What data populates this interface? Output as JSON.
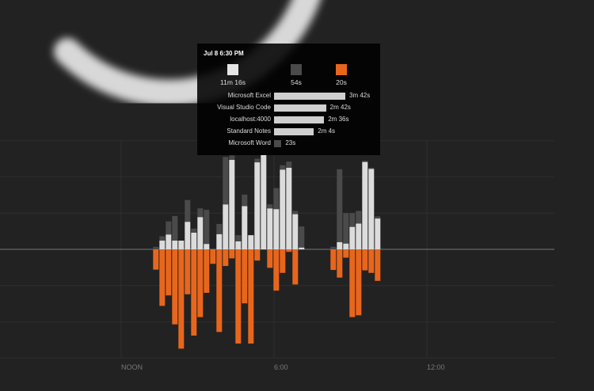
{
  "chart_data": {
    "type": "bar",
    "stacked": true,
    "diverging": true,
    "x_tick_labels": [
      "NOON",
      "6:00",
      "12:00"
    ],
    "grid": true,
    "colors": {
      "productive": "#dcdcdc",
      "neutral": "#4a4a4a",
      "distracting": "#e8661c"
    },
    "bucket_minutes": 15,
    "first_bucket": "1:00 PM",
    "series": [
      {
        "key": "productive",
        "values": [
          0,
          0.24,
          0.41,
          0.24,
          0.24,
          0.76,
          0.46,
          0.89,
          0.15,
          0,
          0.42,
          1.24,
          2.47,
          0.22,
          1.19,
          0.39,
          2.4,
          2.6,
          1.13,
          1.11,
          2.2,
          2.25,
          0.97,
          0.05,
          0,
          0,
          0,
          0,
          0,
          0.2,
          0.16,
          0.62,
          0.71,
          2.41,
          2.22,
          0.85
        ]
      },
      {
        "key": "neutral",
        "values": [
          0.07,
          0.12,
          0.36,
          0.68,
          0,
          0.6,
          0.11,
          0.24,
          0.94,
          0,
          0.28,
          1.31,
          0.12,
          0.17,
          0.32,
          0,
          0.1,
          0,
          0.11,
          0.58,
          0.12,
          0.17,
          0.09,
          0.58,
          0,
          0,
          0,
          0,
          0.07,
          2.01,
          0.84,
          0.38,
          0.35,
          0.03,
          0.03,
          0.06
        ]
      },
      {
        "key": "distracting",
        "values": [
          0.56,
          1.56,
          1.27,
          2.07,
          2.74,
          1.24,
          2.38,
          1.87,
          1.2,
          0.4,
          2.28,
          0.46,
          0.25,
          2.6,
          1.49,
          2.6,
          0.31,
          0,
          0.51,
          1.14,
          0.65,
          0.07,
          0.97,
          0,
          0,
          0,
          0,
          0,
          0.57,
          0.78,
          0.23,
          1.87,
          1.82,
          0.58,
          0.65,
          0.87
        ]
      }
    ]
  },
  "tooltip": {
    "title": "Jul 8 6:30 PM",
    "totals": [
      {
        "category": "productive",
        "value": "11m 16s",
        "color": "#e6e6e6"
      },
      {
        "category": "neutral",
        "value": "54s",
        "color": "#4a4a4a"
      },
      {
        "category": "distracting",
        "value": "20s",
        "color": "#e8661c"
      }
    ],
    "apps": [
      {
        "name": "Microsoft Excel",
        "value": "3m 42s",
        "seconds": 222,
        "color": "#cfcfcf"
      },
      {
        "name": "Visual Studio Code",
        "value": "2m 42s",
        "seconds": 162,
        "color": "#cfcfcf"
      },
      {
        "name": "localhost:4000",
        "value": "2m 36s",
        "seconds": 156,
        "color": "#cfcfcf"
      },
      {
        "name": "Standard Notes",
        "value": "2m 4s",
        "seconds": 124,
        "color": "#cfcfcf"
      },
      {
        "name": "Microsoft Word",
        "value": "23s",
        "seconds": 23,
        "color": "#4a4a4a"
      }
    ]
  }
}
